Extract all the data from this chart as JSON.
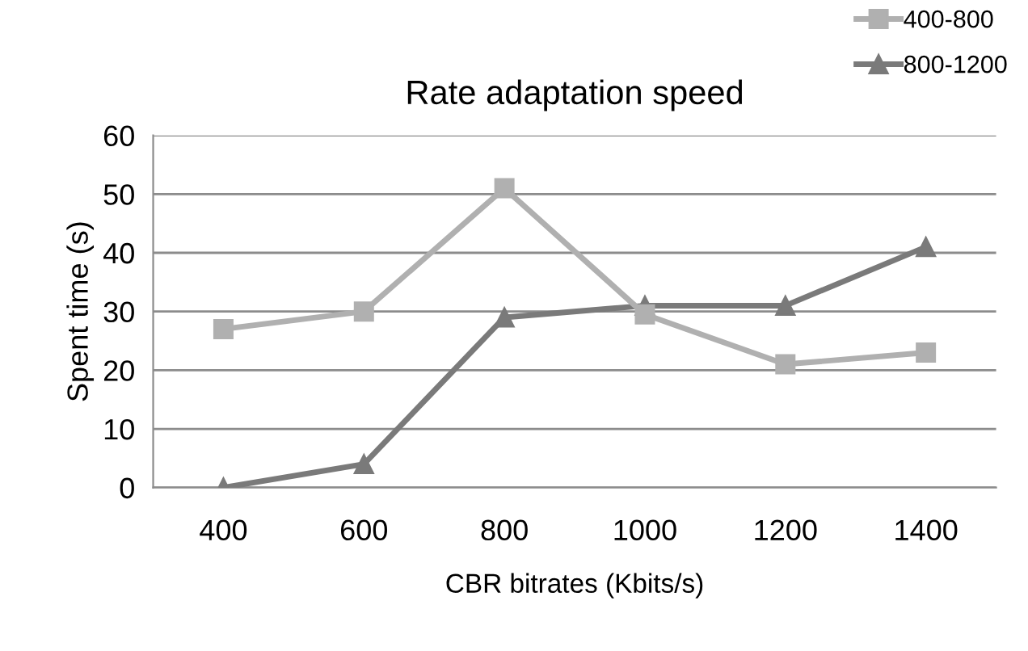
{
  "chart_data": {
    "type": "line",
    "title": "Rate adaptation speed",
    "xlabel": "CBR bitrates (Kbits/s)",
    "ylabel": "Spent time (s)",
    "categories": [
      "400",
      "600",
      "800",
      "1000",
      "1200",
      "1400"
    ],
    "series": [
      {
        "name": "400-800",
        "color": "#b0b0b0",
        "marker": "square",
        "values": [
          27,
          30,
          51,
          29.5,
          21,
          23
        ]
      },
      {
        "name": "800-1200",
        "color": "#7a7a7a",
        "marker": "triangle",
        "values": [
          0,
          4,
          29,
          31,
          31,
          41
        ]
      }
    ],
    "ylim": [
      0,
      60
    ],
    "yticks": [
      0,
      10,
      20,
      30,
      40,
      50,
      60
    ],
    "grid": "y",
    "legend": "top right",
    "line_style": "solid"
  }
}
